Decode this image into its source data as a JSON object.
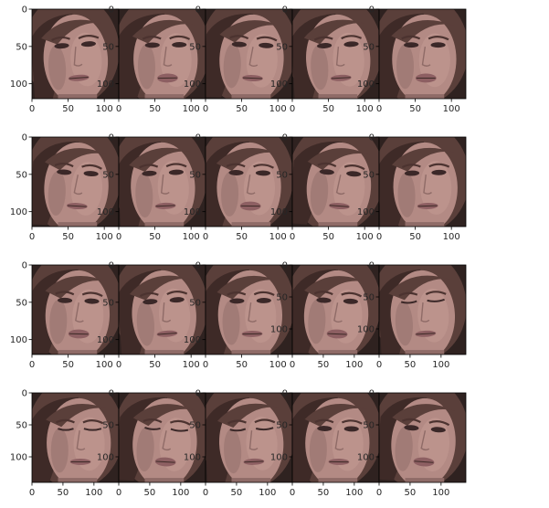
{
  "chart_data": {
    "type": "image-grid",
    "rows": 4,
    "cols": 5,
    "panels": [
      {
        "subject": "face-frame-1",
        "rows": 120,
        "cols": 120,
        "xticks": [
          0,
          50,
          100
        ],
        "yticks": [
          0,
          50,
          100
        ],
        "xlim": [
          0,
          120
        ],
        "ylim": [
          120,
          0
        ]
      },
      {
        "subject": "face-frame-2",
        "rows": 120,
        "cols": 120,
        "xticks": [
          0,
          50,
          100
        ],
        "yticks": [
          0,
          50,
          100
        ],
        "xlim": [
          0,
          120
        ],
        "ylim": [
          120,
          0
        ]
      },
      {
        "subject": "face-frame-3",
        "rows": 120,
        "cols": 120,
        "xticks": [
          0,
          50,
          100
        ],
        "yticks": [
          0,
          50,
          100
        ],
        "xlim": [
          0,
          120
        ],
        "ylim": [
          120,
          0
        ]
      },
      {
        "subject": "face-frame-4",
        "rows": 120,
        "cols": 120,
        "xticks": [
          0,
          50,
          100
        ],
        "yticks": [
          0,
          50,
          100
        ],
        "xlim": [
          0,
          120
        ],
        "ylim": [
          120,
          0
        ]
      },
      {
        "subject": "face-frame-5",
        "rows": 120,
        "cols": 120,
        "xticks": [
          0,
          50,
          100
        ],
        "yticks": [
          0,
          50,
          100
        ],
        "xlim": [
          0,
          120
        ],
        "ylim": [
          120,
          0
        ]
      },
      {
        "subject": "face-frame-6",
        "rows": 120,
        "cols": 120,
        "xticks": [
          0,
          50,
          100
        ],
        "yticks": [
          0,
          50,
          100
        ],
        "xlim": [
          0,
          120
        ],
        "ylim": [
          120,
          0
        ]
      },
      {
        "subject": "face-frame-7",
        "rows": 120,
        "cols": 120,
        "xticks": [
          0,
          50,
          100
        ],
        "yticks": [
          0,
          50,
          100
        ],
        "xlim": [
          0,
          120
        ],
        "ylim": [
          120,
          0
        ]
      },
      {
        "subject": "face-frame-8",
        "rows": 120,
        "cols": 120,
        "xticks": [
          0,
          50,
          100
        ],
        "yticks": [
          0,
          50,
          100
        ],
        "xlim": [
          0,
          120
        ],
        "ylim": [
          120,
          0
        ]
      },
      {
        "subject": "face-frame-9",
        "rows": 120,
        "cols": 120,
        "xticks": [
          0,
          50,
          100
        ],
        "yticks": [
          0,
          50,
          100
        ],
        "xlim": [
          0,
          120
        ],
        "ylim": [
          120,
          0
        ]
      },
      {
        "subject": "face-frame-10",
        "rows": 120,
        "cols": 120,
        "xticks": [
          0,
          50,
          100
        ],
        "yticks": [
          0,
          50,
          100
        ],
        "xlim": [
          0,
          120
        ],
        "ylim": [
          120,
          0
        ]
      },
      {
        "subject": "face-frame-11",
        "rows": 120,
        "cols": 120,
        "xticks": [
          0,
          50,
          100
        ],
        "yticks": [
          0,
          50,
          100
        ],
        "xlim": [
          0,
          120
        ],
        "ylim": [
          120,
          0
        ]
      },
      {
        "subject": "face-frame-12",
        "rows": 120,
        "cols": 120,
        "xticks": [
          0,
          50,
          100
        ],
        "yticks": [
          0,
          50,
          100
        ],
        "xlim": [
          0,
          120
        ],
        "ylim": [
          120,
          0
        ]
      },
      {
        "subject": "face-frame-13",
        "rows": 120,
        "cols": 120,
        "xticks": [
          0,
          50,
          100
        ],
        "yticks": [
          0,
          50,
          100
        ],
        "xlim": [
          0,
          120
        ],
        "ylim": [
          120,
          0
        ]
      },
      {
        "subject": "face-frame-14",
        "rows": 140,
        "cols": 140,
        "xticks": [
          0,
          50,
          100
        ],
        "yticks": [
          0,
          50,
          100
        ],
        "xlim": [
          0,
          140
        ],
        "ylim": [
          140,
          0
        ]
      },
      {
        "subject": "face-frame-15",
        "rows": 140,
        "cols": 140,
        "xticks": [
          0,
          50,
          100
        ],
        "yticks": [
          0,
          50,
          100
        ],
        "xlim": [
          0,
          140
        ],
        "ylim": [
          140,
          0
        ]
      },
      {
        "subject": "face-frame-16",
        "rows": 140,
        "cols": 140,
        "xticks": [
          0,
          50,
          100
        ],
        "yticks": [
          0,
          50,
          100
        ],
        "xlim": [
          0,
          140
        ],
        "ylim": [
          140,
          0
        ]
      },
      {
        "subject": "face-frame-17",
        "rows": 140,
        "cols": 140,
        "xticks": [
          0,
          50,
          100
        ],
        "yticks": [
          0,
          50,
          100
        ],
        "xlim": [
          0,
          140
        ],
        "ylim": [
          140,
          0
        ]
      },
      {
        "subject": "face-frame-18",
        "rows": 140,
        "cols": 140,
        "xticks": [
          0,
          50,
          100
        ],
        "yticks": [
          0,
          50,
          100
        ],
        "xlim": [
          0,
          140
        ],
        "ylim": [
          140,
          0
        ]
      },
      {
        "subject": "face-frame-19",
        "rows": 140,
        "cols": 140,
        "xticks": [
          0,
          50,
          100
        ],
        "yticks": [
          0,
          50,
          100
        ],
        "xlim": [
          0,
          140
        ],
        "ylim": [
          140,
          0
        ]
      },
      {
        "subject": "face-frame-20",
        "rows": 140,
        "cols": 140,
        "xticks": [
          0,
          50,
          100
        ],
        "yticks": [
          0,
          50,
          100
        ],
        "xlim": [
          0,
          140
        ],
        "ylim": [
          140,
          0
        ]
      }
    ],
    "colors": {
      "skin": "#b38a84",
      "skin_light": "#c29a94",
      "skin_shadow": "#8f6b67",
      "hair": "#5a3f3a",
      "hair_dark": "#3e2a27",
      "background": "#2f2220",
      "lips": "#8d5f62",
      "eye": "#3b2828",
      "brow": "#4c3330"
    }
  }
}
